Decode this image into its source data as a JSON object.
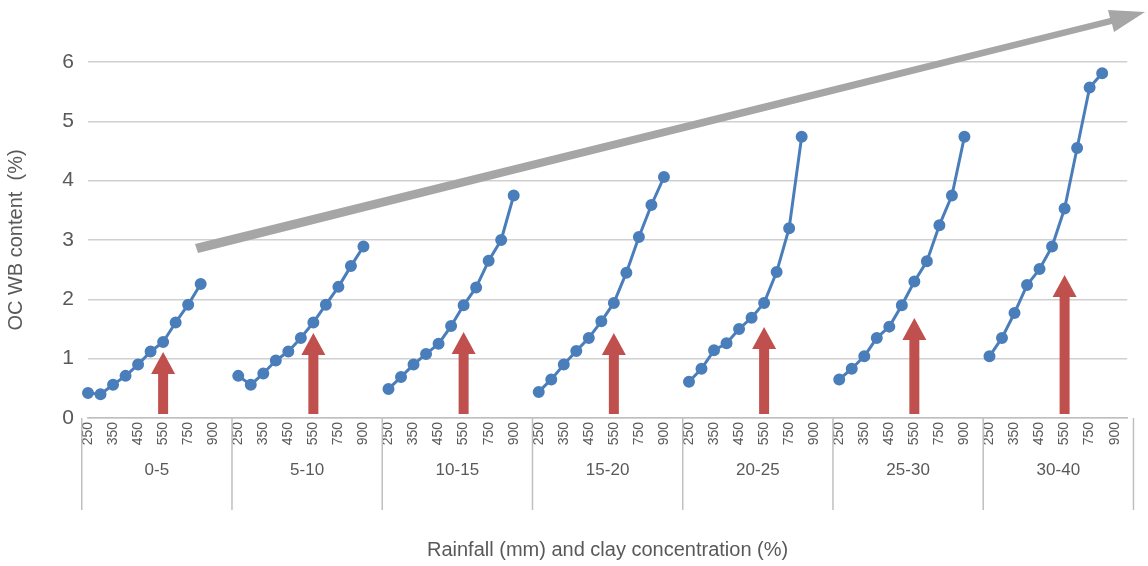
{
  "chart_data": {
    "type": "line",
    "xlabel": "Rainfall (mm) and clay concentration (%)",
    "ylabel": "OC WB content  (%)",
    "categories": [
      "250",
      null,
      "350",
      null,
      "450",
      null,
      "550",
      null,
      "750",
      null,
      "900",
      null,
      "250",
      null,
      "350",
      null,
      "450",
      null,
      "550",
      null,
      "750",
      null,
      "900",
      null,
      "250",
      null,
      "350",
      null,
      "450",
      null,
      "550",
      null,
      "750",
      null,
      "900",
      null,
      "250",
      null,
      "350",
      null,
      "450",
      null,
      "550",
      null,
      "750",
      null,
      "900",
      null,
      "250",
      null,
      "350",
      null,
      "450",
      null,
      "550",
      null,
      "750",
      null,
      "900",
      null,
      "250",
      null,
      "350",
      null,
      "450",
      null,
      "550",
      null,
      "750",
      null,
      "900",
      null,
      "250",
      null,
      "350",
      null,
      "450",
      null,
      "550",
      null,
      "750",
      null,
      "900",
      null
    ],
    "series": [
      {
        "color": "#4a7ebb",
        "values": [
          0.42,
          0.4,
          0.56,
          0.71,
          0.9,
          1.12,
          1.28,
          1.61,
          1.91,
          2.26,
          null,
          null,
          0.71,
          0.56,
          0.75,
          0.97,
          1.12,
          1.35,
          1.61,
          1.91,
          2.21,
          2.56,
          2.89,
          null,
          0.49,
          0.69,
          0.9,
          1.08,
          1.25,
          1.55,
          1.9,
          2.2,
          2.65,
          3.0,
          3.75,
          null,
          0.44,
          0.65,
          0.9,
          1.13,
          1.35,
          1.63,
          1.94,
          2.45,
          3.05,
          3.59,
          4.06,
          null,
          0.61,
          0.83,
          1.14,
          1.26,
          1.5,
          1.69,
          1.94,
          2.46,
          3.2,
          4.74,
          null,
          null,
          0.65,
          0.83,
          1.04,
          1.35,
          1.54,
          1.9,
          2.3,
          2.64,
          3.25,
          3.75,
          4.74,
          null,
          1.04,
          1.35,
          1.77,
          2.24,
          2.51,
          2.89,
          3.53,
          4.55,
          5.57,
          5.81,
          null,
          null
        ]
      }
    ],
    "annotations": [
      "0-5",
      "5-10",
      "10-15",
      "15-20",
      "20-25",
      "25-30",
      "30-40"
    ],
    "ylim": [
      0,
      6
    ],
    "yticks": [
      0,
      1,
      2,
      3,
      4,
      5,
      6
    ],
    "grid": "y",
    "marker": "circle",
    "line_style": "solid",
    "legend": false
  }
}
